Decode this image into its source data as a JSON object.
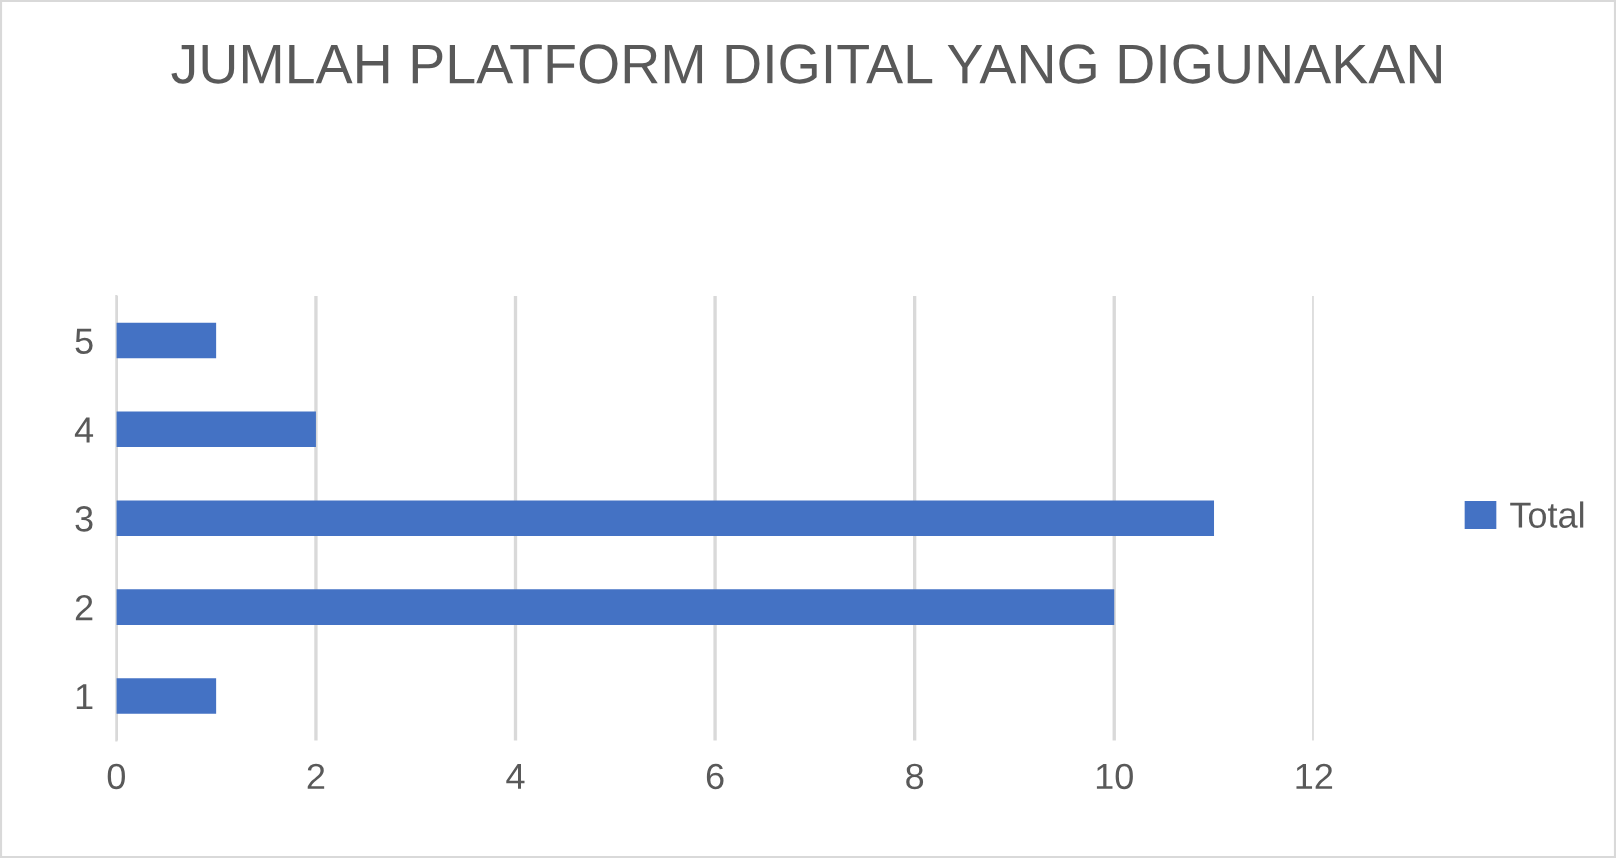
{
  "chart_data": {
    "type": "bar",
    "orientation": "horizontal",
    "title": "JUMLAH PLATFORM DIGITAL YANG DIGUNAKAN",
    "categories": [
      "5",
      "4",
      "3",
      "2",
      "1"
    ],
    "series": [
      {
        "name": "Total",
        "color": "#4472c4",
        "values": [
          1,
          2,
          11,
          10,
          1
        ]
      }
    ],
    "xlim": [
      0,
      12
    ],
    "xticks": [
      0,
      2,
      4,
      6,
      8,
      10,
      12
    ],
    "grid": "x",
    "legend": "right"
  }
}
